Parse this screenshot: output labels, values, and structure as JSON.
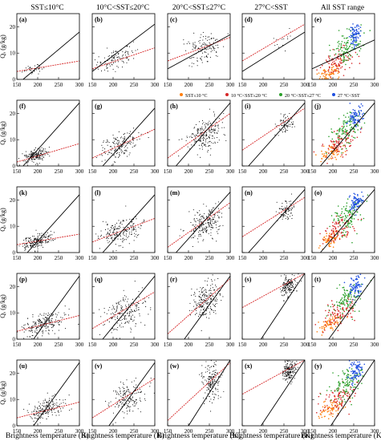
{
  "figure": {
    "column_titles": [
      "SST≤10°C",
      "10°C<SST≤20°C",
      "20°C<SST≤27°C",
      "27°C<SST",
      "All SST range"
    ],
    "row_ylabel": "Qₐ (g/kg)",
    "xlabel": "Brightness temperature (K)",
    "legend": [
      {
        "label": "SST≤10 °C",
        "color": "#ff7f0e"
      },
      {
        "label": "10 °C<SST≤20 °C",
        "color": "#d62728"
      },
      {
        "label": "20 °C<SST≤27 °C",
        "color": "#2ca02c"
      },
      {
        "label": "27 °C<SST",
        "color": "#1f4fe0"
      }
    ]
  },
  "chart_data": {
    "type": "scatter",
    "grid": false,
    "xlim": [
      150,
      300
    ],
    "ylim": [
      0,
      25
    ],
    "xticks": [
      150,
      200,
      250,
      300
    ],
    "yticks": [
      0,
      10,
      20
    ],
    "xlabel": "Brightness temperature (K)",
    "ylabel": "Qₐ (g/kg)",
    "columns": [
      "SST≤10°C",
      "10°C<SST≤20°C",
      "20°C<SST≤27°C",
      "27°C<SST",
      "All SST range"
    ],
    "series_colors": {
      "cold": "#ff7f0e",
      "cool": "#d62728",
      "warm": "#2ca02c",
      "hot": "#1f4fe0",
      "points": "#000000",
      "fit": "#d62728",
      "ref": "#000000"
    },
    "panels": [
      {
        "label": "(a)",
        "row": 0,
        "col": 0,
        "cx": 190,
        "cy": 4,
        "sx": 12,
        "sy": 1.0,
        "n": 35,
        "fit": [
          [
            150,
            3
          ],
          [
            300,
            7
          ]
        ],
        "ref": [
          [
            165,
            0
          ],
          [
            300,
            18
          ]
        ]
      },
      {
        "label": "(b)",
        "row": 0,
        "col": 1,
        "cx": 210,
        "cy": 8,
        "sx": 25,
        "sy": 2.0,
        "n": 110,
        "fit": [
          [
            150,
            4
          ],
          [
            300,
            12
          ]
        ],
        "ref": [
          [
            150,
            3
          ],
          [
            300,
            21
          ]
        ]
      },
      {
        "label": "(c)",
        "row": 0,
        "col": 2,
        "cx": 240,
        "cy": 12,
        "sx": 22,
        "sy": 3.0,
        "n": 130,
        "fit": [
          [
            150,
            7
          ],
          [
            300,
            16
          ]
        ],
        "ref": [
          [
            150,
            4
          ],
          [
            300,
            17
          ]
        ]
      },
      {
        "label": "(d)",
        "row": 0,
        "col": 3,
        "cx": 245,
        "cy": 14,
        "sx": 12,
        "sy": 2.0,
        "n": 14,
        "fit": [
          [
            150,
            7
          ],
          [
            300,
            21
          ]
        ],
        "ref": [
          [
            150,
            3
          ],
          [
            300,
            18
          ]
        ]
      },
      {
        "label": "(e)",
        "row": 0,
        "col": 4,
        "ref": [
          [
            150,
            4
          ],
          [
            300,
            15
          ]
        ]
      },
      {
        "label": "(f)",
        "row": 1,
        "col": 0,
        "cx": 195,
        "cy": 4,
        "sx": 15,
        "sy": 1.3,
        "n": 170,
        "fit": [
          [
            150,
            1.5
          ],
          [
            300,
            8.5
          ]
        ],
        "ref": [
          [
            165,
            0
          ],
          [
            300,
            24
          ]
        ]
      },
      {
        "label": "(g)",
        "row": 1,
        "col": 1,
        "cx": 215,
        "cy": 8,
        "sx": 25,
        "sy": 2.5,
        "n": 170,
        "fit": [
          [
            150,
            3
          ],
          [
            300,
            14
          ]
        ],
        "ref": [
          [
            175,
            0
          ],
          [
            300,
            22
          ]
        ]
      },
      {
        "label": "(h)",
        "row": 1,
        "col": 2,
        "cx": 240,
        "cy": 12,
        "sx": 20,
        "sy": 3.0,
        "n": 200,
        "fit": [
          [
            150,
            3
          ],
          [
            300,
            20
          ]
        ],
        "ref": [
          [
            170,
            0
          ],
          [
            300,
            24
          ]
        ]
      },
      {
        "label": "(i)",
        "row": 1,
        "col": 3,
        "cx": 255,
        "cy": 16,
        "sx": 10,
        "sy": 2.0,
        "n": 70,
        "fit": [
          [
            150,
            6
          ],
          [
            300,
            22
          ]
        ],
        "ref": [
          [
            165,
            0
          ],
          [
            300,
            24
          ]
        ]
      },
      {
        "label": "(j)",
        "row": 1,
        "col": 4,
        "ref": [
          [
            170,
            0
          ],
          [
            300,
            24
          ]
        ]
      },
      {
        "label": "(k)",
        "row": 2,
        "col": 0,
        "cx": 200,
        "cy": 4.5,
        "sx": 17,
        "sy": 1.3,
        "n": 190,
        "fit": [
          [
            150,
            3
          ],
          [
            300,
            7
          ]
        ],
        "ref": [
          [
            175,
            0
          ],
          [
            300,
            22
          ]
        ]
      },
      {
        "label": "(l)",
        "row": 2,
        "col": 1,
        "cx": 215,
        "cy": 8,
        "sx": 25,
        "sy": 2.5,
        "n": 200,
        "fit": [
          [
            150,
            4
          ],
          [
            300,
            13
          ]
        ],
        "ref": [
          [
            175,
            0
          ],
          [
            300,
            22
          ]
        ]
      },
      {
        "label": "(m)",
        "row": 2,
        "col": 2,
        "cx": 240,
        "cy": 11,
        "sx": 22,
        "sy": 3.0,
        "n": 220,
        "fit": [
          [
            150,
            2
          ],
          [
            300,
            19
          ]
        ],
        "ref": [
          [
            170,
            0
          ],
          [
            300,
            23
          ]
        ]
      },
      {
        "label": "(n)",
        "row": 2,
        "col": 3,
        "cx": 255,
        "cy": 16,
        "sx": 10,
        "sy": 2.0,
        "n": 80,
        "fit": [
          [
            150,
            6
          ],
          [
            300,
            21
          ]
        ],
        "ref": [
          [
            165,
            0
          ],
          [
            300,
            24
          ]
        ]
      },
      {
        "label": "(o)",
        "row": 2,
        "col": 4,
        "ref": [
          [
            170,
            0
          ],
          [
            300,
            24
          ]
        ]
      },
      {
        "label": "(p)",
        "row": 3,
        "col": 0,
        "cx": 215,
        "cy": 6,
        "sx": 25,
        "sy": 2.0,
        "n": 210,
        "fit": [
          [
            150,
            3
          ],
          [
            300,
            9
          ]
        ],
        "ref": [
          [
            190,
            0
          ],
          [
            300,
            24
          ]
        ]
      },
      {
        "label": "(q)",
        "row": 3,
        "col": 1,
        "cx": 225,
        "cy": 10,
        "sx": 25,
        "sy": 3.5,
        "n": 200,
        "fit": [
          [
            150,
            4
          ],
          [
            300,
            18
          ]
        ],
        "ref": [
          [
            175,
            0
          ],
          [
            300,
            24
          ]
        ]
      },
      {
        "label": "(r)",
        "row": 3,
        "col": 2,
        "cx": 245,
        "cy": 15,
        "sx": 18,
        "sy": 3.5,
        "n": 220,
        "fit": [
          [
            150,
            2
          ],
          [
            300,
            23
          ]
        ],
        "ref": [
          [
            190,
            0
          ],
          [
            300,
            24
          ]
        ]
      },
      {
        "label": "(s)",
        "row": 3,
        "col": 3,
        "cx": 260,
        "cy": 20,
        "sx": 9,
        "sy": 2.0,
        "n": 160,
        "fit": [
          [
            150,
            12
          ],
          [
            300,
            25
          ]
        ],
        "ref": [
          [
            195,
            0
          ],
          [
            300,
            25
          ]
        ]
      },
      {
        "label": "(t)",
        "row": 3,
        "col": 4,
        "ref": [
          [
            190,
            0
          ],
          [
            300,
            24
          ]
        ]
      },
      {
        "label": "(u)",
        "row": 4,
        "col": 0,
        "cx": 220,
        "cy": 6,
        "sx": 22,
        "sy": 2.0,
        "n": 180,
        "fit": [
          [
            150,
            3
          ],
          [
            300,
            9
          ]
        ],
        "ref": [
          [
            190,
            0
          ],
          [
            300,
            24
          ]
        ]
      },
      {
        "label": "(v)",
        "row": 4,
        "col": 1,
        "cx": 235,
        "cy": 11,
        "sx": 20,
        "sy": 3.0,
        "n": 170,
        "fit": [
          [
            150,
            3
          ],
          [
            300,
            18
          ]
        ],
        "ref": [
          [
            190,
            0
          ],
          [
            300,
            24
          ]
        ]
      },
      {
        "label": "(w)",
        "row": 4,
        "col": 2,
        "cx": 255,
        "cy": 17,
        "sx": 12,
        "sy": 4.0,
        "n": 170,
        "fit": [
          [
            150,
            2
          ],
          [
            300,
            24
          ]
        ],
        "ref": [
          [
            200,
            0
          ],
          [
            300,
            25
          ]
        ]
      },
      {
        "label": "(x)",
        "row": 4,
        "col": 3,
        "cx": 262,
        "cy": 21,
        "sx": 9,
        "sy": 2.0,
        "n": 170,
        "fit": [
          [
            150,
            12
          ],
          [
            300,
            25
          ]
        ],
        "ref": [
          [
            195,
            0
          ],
          [
            300,
            25
          ]
        ]
      },
      {
        "label": "(y)",
        "row": 4,
        "col": 4,
        "ref": [
          [
            195,
            0
          ],
          [
            300,
            25
          ]
        ]
      }
    ]
  }
}
